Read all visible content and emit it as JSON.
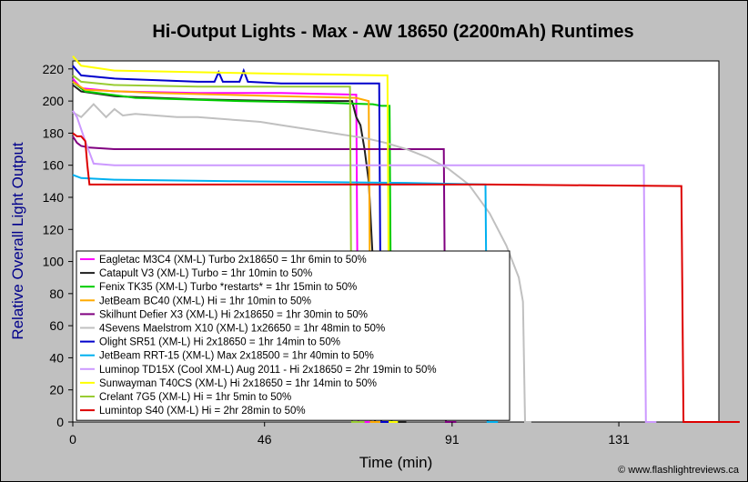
{
  "chart_data": {
    "type": "line",
    "title": "Hi-Output Lights - Max - AW 18650 (2200mAh) Runtimes",
    "xlabel": "Time (min)",
    "ylabel": "Relative Overall Light Output",
    "xlim": [
      0,
      155
    ],
    "ylim": [
      0,
      225
    ],
    "x_ticks": [
      0,
      46,
      91,
      131
    ],
    "y_ticks": [
      0,
      20,
      40,
      60,
      80,
      100,
      120,
      140,
      160,
      180,
      200,
      220
    ],
    "grid": false,
    "legend_position": "bottom-left",
    "credit": "© www.flashlightreviews.ca",
    "series": [
      {
        "name": "Eagletac M3C4 (XM-L) Turbo 2x18650 = 1hr 6min to 50%",
        "color": "#ff00ff",
        "x": [
          0,
          2,
          10,
          30,
          50,
          68,
          68.5,
          72
        ],
        "y": [
          214,
          208,
          206,
          205,
          205,
          204,
          0,
          0
        ]
      },
      {
        "name": "Catapult V3 (XM-L) Turbo = 1hr 10min to 50%",
        "color": "#202020",
        "x": [
          0,
          2,
          10,
          30,
          50,
          67,
          68,
          69,
          70,
          71,
          72,
          72.5,
          80
        ],
        "y": [
          210,
          206,
          203,
          201,
          200,
          200,
          190,
          185,
          170,
          150,
          100,
          0,
          0
        ]
      },
      {
        "name": "Fenix TK35 (XM-L) Turbo *restarts* = 1hr 15min to 50%",
        "color": "#00cc00",
        "x": [
          0,
          3,
          15,
          40,
          60,
          72,
          74,
          75,
          76,
          76.5,
          78
        ],
        "y": [
          212,
          206,
          202,
          200,
          199,
          198,
          197,
          197,
          197,
          0,
          0
        ]
      },
      {
        "name": "JetBeam BC40 (XM-L) Hi = 1hr 10min to 50%",
        "color": "#ffaa00",
        "x": [
          0,
          3,
          20,
          50,
          68,
          71,
          71.5,
          74
        ],
        "y": [
          212,
          207,
          205,
          203,
          202,
          200,
          0,
          0
        ]
      },
      {
        "name": "Skilhunt Defier X3 (XM-L) Hi 2x18650 = 1hr 30min to 50%",
        "color": "#800080",
        "x": [
          0,
          1,
          2,
          4,
          10,
          40,
          70,
          89,
          89.5,
          92
        ],
        "y": [
          178,
          174,
          172,
          171,
          170,
          170,
          170,
          170,
          0,
          0
        ]
      },
      {
        "name": "4Sevens Maelstrom X10 (XM-L) 1x26650 = 1hr 48min to 50%",
        "color": "#c0c0c0",
        "x": [
          0,
          2,
          5,
          8,
          10,
          12,
          15,
          20,
          25,
          30,
          35,
          40,
          45,
          50,
          55,
          60,
          65,
          70,
          75,
          80,
          85,
          90,
          95,
          100,
          104,
          107,
          108,
          108.5,
          110
        ],
        "y": [
          193,
          190,
          198,
          190,
          195,
          191,
          192,
          191,
          190,
          190,
          189,
          188,
          187,
          185,
          183,
          181,
          179,
          177,
          174,
          170,
          165,
          158,
          148,
          130,
          110,
          90,
          75,
          0,
          0
        ]
      },
      {
        "name": "Olight SR51 (XM-L) Hi 2x18650 = 1hr 14min to 50%",
        "color": "#0000cc",
        "x": [
          0,
          2,
          10,
          30,
          34,
          35,
          36,
          40,
          41,
          42,
          50,
          70,
          73.5,
          74,
          76
        ],
        "y": [
          222,
          216,
          214,
          212,
          212,
          218,
          212,
          212,
          219,
          212,
          211,
          211,
          211,
          0,
          0
        ]
      },
      {
        "name": "JetBeam RRT-15 (XM-L) Max 2x18500 = 1hr 40min to 50%",
        "color": "#00b0f0",
        "x": [
          0,
          2,
          10,
          40,
          80,
          99,
          99.5,
          102
        ],
        "y": [
          154,
          152,
          151,
          150,
          149,
          148,
          0,
          0
        ]
      },
      {
        "name": "Luminop TD15X (Cool XM-L) Aug 2011 - Hi 2x18650 = 2hr 19min to 50%",
        "color": "#cc99ff",
        "x": [
          0,
          1,
          3,
          5,
          10,
          40,
          80,
          120,
          137,
          137.5,
          140
        ],
        "y": [
          194,
          190,
          175,
          161,
          160,
          160,
          160,
          160,
          160,
          0,
          0
        ]
      },
      {
        "name": "Sunwayman T40CS (XM-L) Hi 2x18650 = 1hr 14min to 50%",
        "color": "#ffff00",
        "x": [
          0,
          2,
          10,
          30,
          50,
          74,
          75.5,
          76,
          78
        ],
        "y": [
          228,
          222,
          219,
          218,
          217,
          216,
          216,
          0,
          0
        ]
      },
      {
        "name": "Crelant 7G5 (XM-L) Hi = 1hr 5min to 50%",
        "color": "#99cc33",
        "x": [
          0,
          2,
          10,
          30,
          50,
          65,
          66.5,
          67,
          70
        ],
        "y": [
          216,
          212,
          210,
          209,
          209,
          209,
          209,
          0,
          0
        ]
      },
      {
        "name": "Lumintop S40 (XM-L) Hi = 2hr 28min to 50%",
        "color": "#dd0000",
        "x": [
          0,
          1,
          2,
          3,
          3.5,
          4,
          10,
          50,
          100,
          146,
          146.5,
          148,
          160
        ],
        "y": [
          180,
          178,
          178,
          175,
          160,
          148,
          148,
          148,
          148,
          147,
          0,
          0,
          0
        ]
      }
    ]
  }
}
